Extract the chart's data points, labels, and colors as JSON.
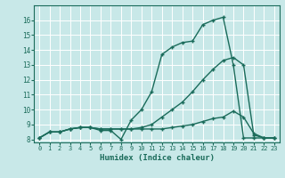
{
  "xlabel": "Humidex (Indice chaleur)",
  "bg_color": "#c8e8e8",
  "grid_color": "#ffffff",
  "line_color": "#1a6b5a",
  "xlim": [
    -0.5,
    23.5
  ],
  "ylim": [
    7.8,
    17.0
  ],
  "yticks": [
    8,
    9,
    10,
    11,
    12,
    13,
    14,
    15,
    16
  ],
  "xticks": [
    0,
    1,
    2,
    3,
    4,
    5,
    6,
    7,
    8,
    9,
    10,
    11,
    12,
    13,
    14,
    15,
    16,
    17,
    18,
    19,
    20,
    21,
    22,
    23
  ],
  "series1_x": [
    0,
    1,
    2,
    3,
    4,
    5,
    6,
    7,
    8,
    9,
    10,
    11,
    12,
    13,
    14,
    15,
    16,
    17,
    18,
    19,
    20,
    21,
    22,
    23
  ],
  "series1_y": [
    8.1,
    8.5,
    8.5,
    8.7,
    8.8,
    8.8,
    8.6,
    8.6,
    8.0,
    9.3,
    10.0,
    11.2,
    13.7,
    14.2,
    14.5,
    14.6,
    15.7,
    16.0,
    16.2,
    13.0,
    8.1,
    8.1,
    8.1,
    8.1
  ],
  "series2_x": [
    0,
    1,
    2,
    3,
    4,
    5,
    6,
    7,
    8,
    9,
    10,
    11,
    12,
    13,
    14,
    15,
    16,
    17,
    18,
    19,
    20,
    21,
    22,
    23
  ],
  "series2_y": [
    8.1,
    8.5,
    8.5,
    8.7,
    8.8,
    8.8,
    8.7,
    8.7,
    8.7,
    8.7,
    8.8,
    9.0,
    9.5,
    10.0,
    10.5,
    11.2,
    12.0,
    12.7,
    13.3,
    13.5,
    13.0,
    8.3,
    8.1,
    8.1
  ],
  "series3_x": [
    0,
    1,
    2,
    3,
    4,
    5,
    6,
    7,
    8,
    9,
    10,
    11,
    12,
    13,
    14,
    15,
    16,
    17,
    18,
    19,
    20,
    21,
    22,
    23
  ],
  "series3_y": [
    8.1,
    8.5,
    8.5,
    8.7,
    8.8,
    8.8,
    8.7,
    8.7,
    8.7,
    8.7,
    8.7,
    8.7,
    8.7,
    8.8,
    8.9,
    9.0,
    9.2,
    9.4,
    9.5,
    9.9,
    9.5,
    8.4,
    8.1,
    8.1
  ],
  "marker": "+",
  "markersize": 3,
  "linewidth": 1.0
}
